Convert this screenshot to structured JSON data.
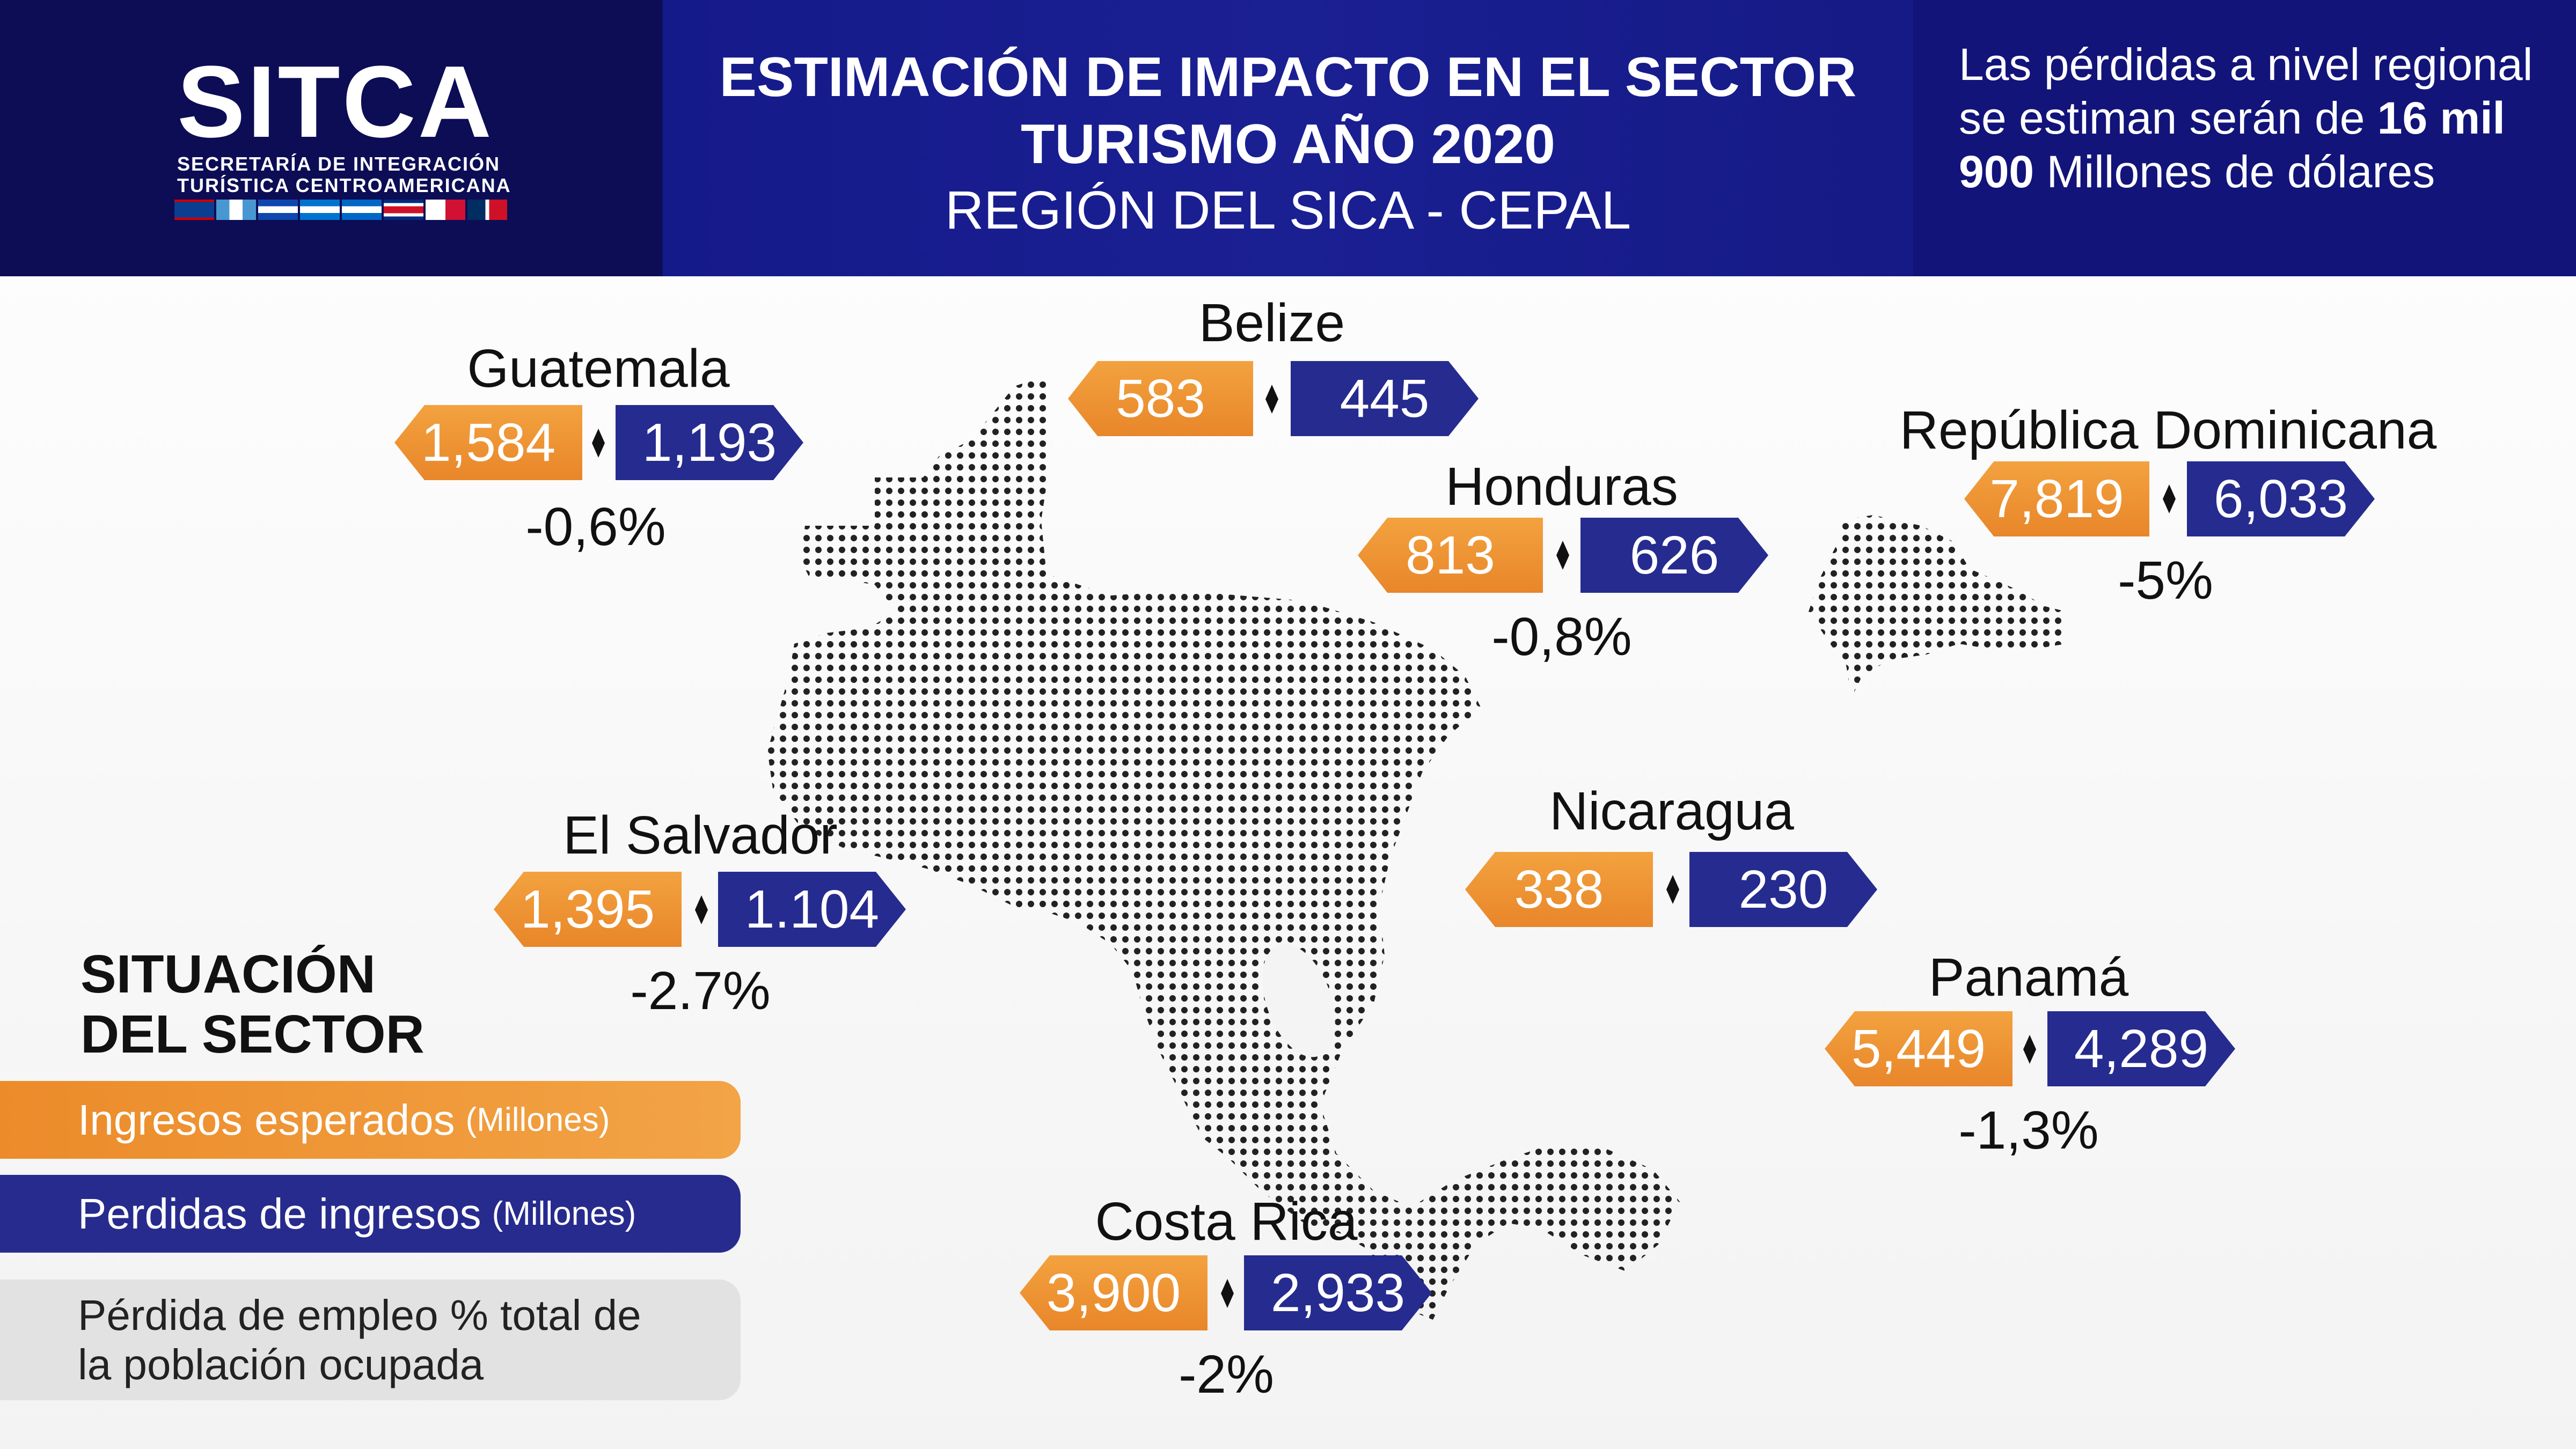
{
  "header": {
    "logo": {
      "name": "SITCA",
      "sub1": "SECRETARÍA DE INTEGRACIÓN",
      "sub2": "TURÍSTICA CENTROAMERICANA"
    },
    "title_line1": "ESTIMACIÓN DE IMPACTO EN EL SECTOR",
    "title_line2": "TURISMO AÑO 2020",
    "title_line3": "REGIÓN DEL SICA - CEPAL",
    "note": {
      "part1": "Las pérdidas a nivel regional se estiman serán de ",
      "highlight": "16 mil 900",
      "part2": " Millones de dólares"
    }
  },
  "colors": {
    "header_dark": "#0c0d55",
    "header_mid": "#1a1f92",
    "orange": "#ec8b2a",
    "blue": "#262b8f",
    "map_dots": "#222222"
  },
  "countries": [
    {
      "name": "Guatemala",
      "income": "1,584",
      "loss": "1,193",
      "pct": "-0,6%"
    },
    {
      "name": "Belize",
      "income": "583",
      "loss": "445",
      "pct": ""
    },
    {
      "name": "Honduras",
      "income": "813",
      "loss": "626",
      "pct": "-0,8%"
    },
    {
      "name": "República Dominicana",
      "income": "7,819",
      "loss": "6,033",
      "pct": "-5%"
    },
    {
      "name": "El Salvador",
      "income": "1,395",
      "loss": "1.104",
      "pct": "-2.7%"
    },
    {
      "name": "Nicaragua",
      "income": "338",
      "loss": "230",
      "pct": ""
    },
    {
      "name": "Panamá",
      "income": "5,449",
      "loss": "4,289",
      "pct": "-1,3%"
    },
    {
      "name": "Costa Rica",
      "income": "3,900",
      "loss": "2,933",
      "pct": "-2%"
    }
  ],
  "legend": {
    "title_line1": "SITUACIÓN",
    "title_line2": "DEL SECTOR",
    "income_label": "Ingresos esperados",
    "income_unit": "(Millones)",
    "loss_label": "Perdidas de ingresos",
    "loss_unit": "(Millones)",
    "employment_line1": "Pérdida de empleo % total de",
    "employment_line2": "la población ocupada"
  }
}
